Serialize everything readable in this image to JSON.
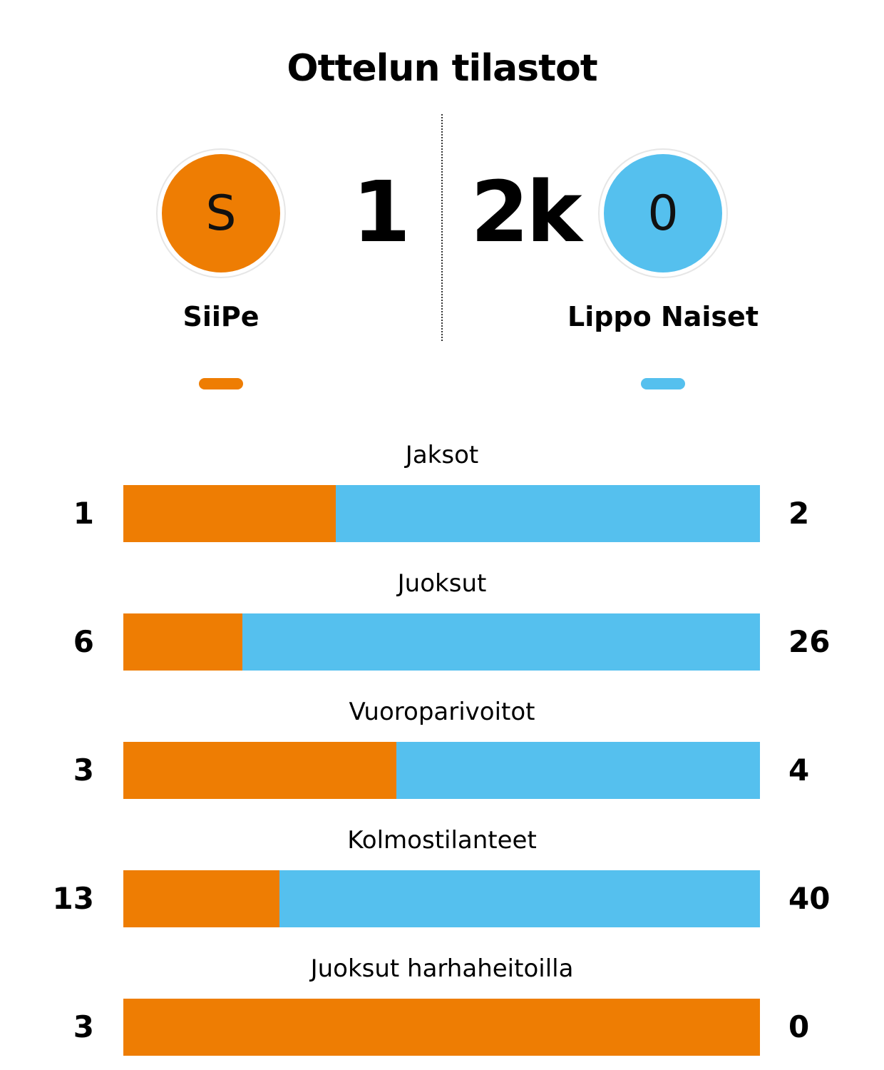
{
  "title": "Ottelun tilastot",
  "colors": {
    "home": "#ee7d03",
    "away": "#55c0ee"
  },
  "home": {
    "logo_letter": "S",
    "score": "1",
    "name": "SiiPe"
  },
  "away": {
    "logo_letter": "0",
    "score": "2k",
    "name": "Lippo Naiset"
  },
  "chart_data": {
    "type": "bar",
    "orientation": "horizontal-stacked-share",
    "categories": [
      "Jaksot",
      "Juoksut",
      "Vuoroparivoitot",
      "Kolmostilanteet",
      "Juoksut harhaheitoilla"
    ],
    "series": [
      {
        "name": "SiiPe",
        "values": [
          1,
          6,
          3,
          13,
          3
        ]
      },
      {
        "name": "Lippo Naiset",
        "values": [
          2,
          26,
          4,
          40,
          0
        ]
      }
    ]
  }
}
